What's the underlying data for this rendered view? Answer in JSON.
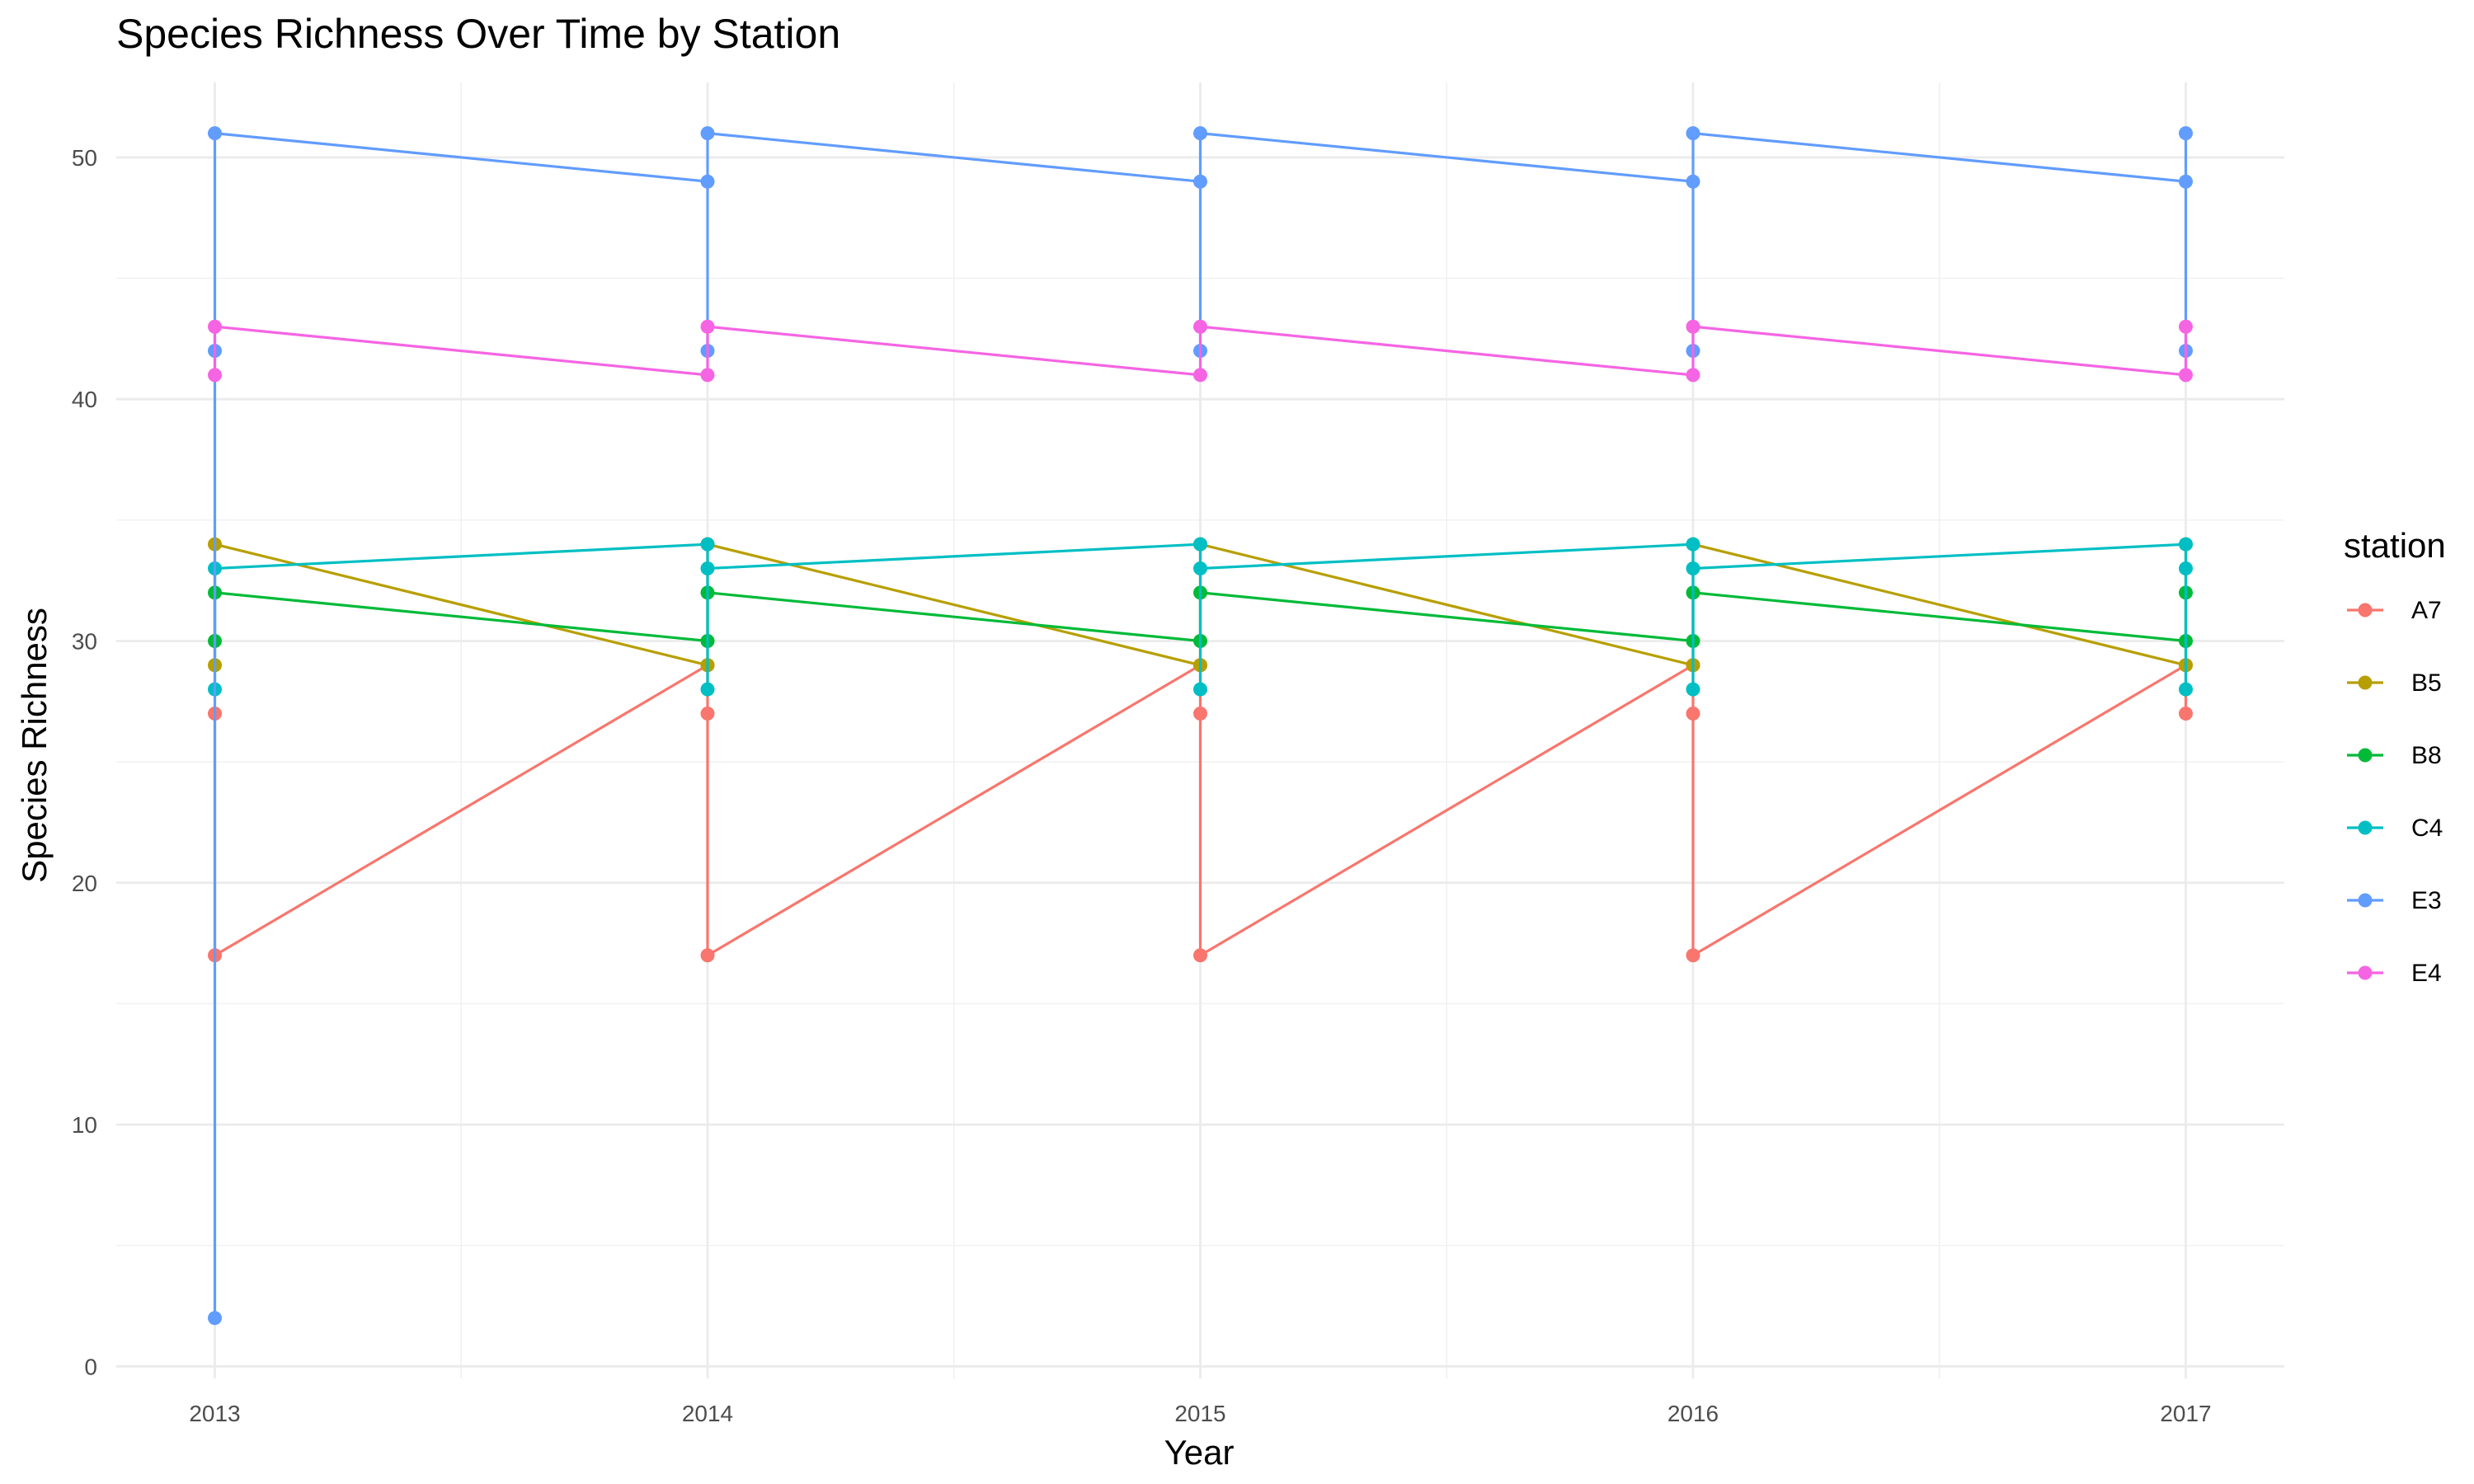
{
  "chart_data": {
    "type": "line",
    "title": "Species Richness Over Time by Station",
    "xlabel": "Year",
    "ylabel": "Species Richness",
    "x_ticks": [
      2013,
      2014,
      2015,
      2016,
      2017
    ],
    "y_ticks": [
      0,
      10,
      20,
      30,
      40,
      50
    ],
    "xlim": [
      2012.8,
      2017.2
    ],
    "ylim": [
      -0.5,
      53.1
    ],
    "grid": true,
    "legend_title": "station",
    "legend_position": "right",
    "series": [
      {
        "name": "A7",
        "color": "#F8766D",
        "points": [
          [
            2013,
            27
          ],
          [
            2013,
            17
          ],
          [
            2014,
            29
          ],
          [
            2014,
            27
          ],
          [
            2014,
            17
          ],
          [
            2015,
            29
          ],
          [
            2015,
            27
          ],
          [
            2015,
            17
          ],
          [
            2016,
            29
          ],
          [
            2016,
            27
          ],
          [
            2016,
            17
          ],
          [
            2017,
            29
          ],
          [
            2017,
            27
          ]
        ]
      },
      {
        "name": "B5",
        "color": "#B79F00",
        "points": [
          [
            2013,
            29
          ],
          [
            2013,
            34
          ],
          [
            2014,
            29
          ],
          [
            2014,
            34
          ],
          [
            2015,
            29
          ],
          [
            2015,
            34
          ],
          [
            2016,
            29
          ],
          [
            2016,
            34
          ],
          [
            2017,
            29
          ],
          [
            2017,
            34
          ]
        ]
      },
      {
        "name": "B8",
        "color": "#00BA38",
        "points": [
          [
            2013,
            30
          ],
          [
            2013,
            32
          ],
          [
            2014,
            30
          ],
          [
            2014,
            32
          ],
          [
            2015,
            30
          ],
          [
            2015,
            32
          ],
          [
            2016,
            30
          ],
          [
            2016,
            32
          ],
          [
            2017,
            30
          ],
          [
            2017,
            32
          ]
        ]
      },
      {
        "name": "C4",
        "color": "#00BFC4",
        "points": [
          [
            2013,
            28
          ],
          [
            2013,
            33
          ],
          [
            2014,
            34
          ],
          [
            2014,
            28
          ],
          [
            2014,
            33
          ],
          [
            2015,
            34
          ],
          [
            2015,
            28
          ],
          [
            2015,
            33
          ],
          [
            2016,
            34
          ],
          [
            2016,
            28
          ],
          [
            2016,
            33
          ],
          [
            2017,
            34
          ],
          [
            2017,
            28
          ],
          [
            2017,
            33
          ]
        ]
      },
      {
        "name": "E3",
        "color": "#619CFF",
        "points": [
          [
            2013,
            2
          ],
          [
            2013,
            42
          ],
          [
            2013,
            51
          ],
          [
            2014,
            49
          ],
          [
            2014,
            42
          ],
          [
            2014,
            51
          ],
          [
            2015,
            49
          ],
          [
            2015,
            42
          ],
          [
            2015,
            51
          ],
          [
            2016,
            49
          ],
          [
            2016,
            42
          ],
          [
            2016,
            51
          ],
          [
            2017,
            49
          ],
          [
            2017,
            42
          ],
          [
            2017,
            51
          ]
        ]
      },
      {
        "name": "E4",
        "color": "#F564E3",
        "points": [
          [
            2013,
            41
          ],
          [
            2013,
            43
          ],
          [
            2014,
            41
          ],
          [
            2014,
            43
          ],
          [
            2015,
            41
          ],
          [
            2015,
            43
          ],
          [
            2016,
            41
          ],
          [
            2016,
            43
          ],
          [
            2017,
            41
          ],
          [
            2017,
            43
          ]
        ]
      }
    ]
  }
}
